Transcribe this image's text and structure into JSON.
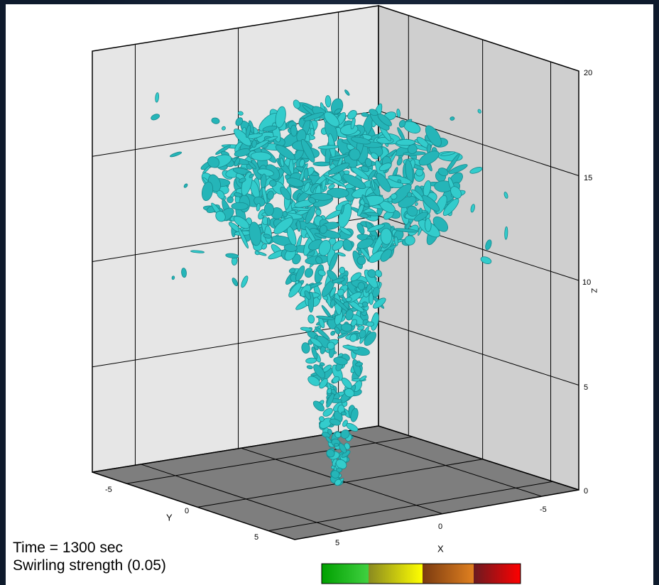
{
  "annotations": {
    "time": "Time = 1300 sec",
    "quantity": "Swirling strength (0.05)"
  },
  "axes": {
    "x_label": "X",
    "y_label": "Y",
    "z_label": "Z",
    "x_ticks": [
      "5",
      "0",
      "-5"
    ],
    "y_ticks": [
      "-5",
      "0",
      "5"
    ],
    "z_ticks": [
      "0",
      "5",
      "10",
      "15",
      "20"
    ]
  }
}
